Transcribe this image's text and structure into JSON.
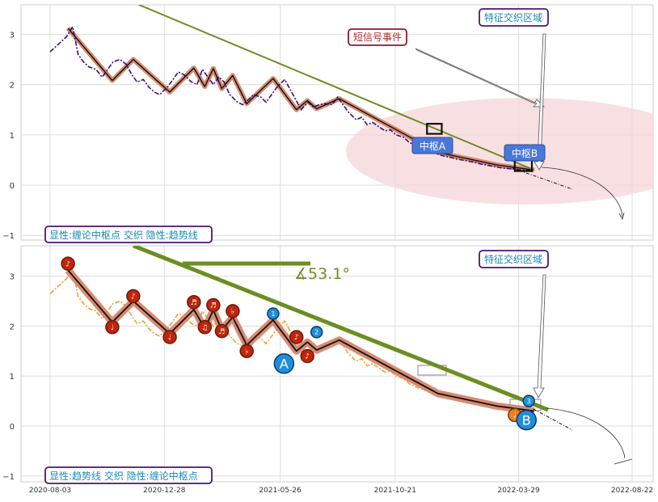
{
  "chart_data": [
    {
      "type": "line",
      "panel": "top",
      "ylim": [
        -1.1,
        3.6
      ],
      "y_ticks": [
        "3",
        "2",
        "1",
        "0",
        "−1"
      ],
      "grid": true,
      "price": {
        "x": [
          "2020-08-03",
          "2020-08-10",
          "2020-08-17",
          "2020-08-24",
          "2020-09-01",
          "2020-09-08",
          "2020-09-15",
          "2020-09-22",
          "2020-10-01",
          "2020-10-09",
          "2020-10-16",
          "2020-10-23",
          "2020-11-01",
          "2020-11-09",
          "2020-11-16",
          "2020-11-23",
          "2020-12-01",
          "2020-12-08",
          "2020-12-15",
          "2020-12-22",
          "2021-01-01",
          "2021-01-08",
          "2021-01-15",
          "2021-01-22",
          "2021-02-01",
          "2021-02-08",
          "2021-02-15",
          "2021-02-22",
          "2021-03-01",
          "2021-03-08",
          "2021-03-15",
          "2021-03-22",
          "2021-04-01",
          "2021-04-08",
          "2021-04-15",
          "2021-04-22",
          "2021-05-01",
          "2021-05-08",
          "2021-05-15",
          "2021-05-22",
          "2021-06-01",
          "2021-06-08",
          "2021-06-15",
          "2021-06-22",
          "2021-07-01",
          "2021-07-08",
          "2021-07-15",
          "2021-07-22",
          "2021-08-01",
          "2021-08-08",
          "2021-08-15",
          "2021-08-22",
          "2021-09-01",
          "2021-09-08",
          "2021-09-15",
          "2021-09-22",
          "2021-10-01",
          "2021-10-08",
          "2021-10-15",
          "2021-10-22",
          "2021-11-01",
          "2021-11-08",
          "2021-11-15",
          "2021-11-22",
          "2021-12-01",
          "2021-12-08",
          "2021-12-15",
          "2021-12-22",
          "2022-01-01",
          "2022-01-08",
          "2022-01-15",
          "2022-01-22",
          "2022-02-01",
          "2022-02-08",
          "2022-02-15",
          "2022-02-22",
          "2022-03-01",
          "2022-03-08",
          "2022-03-15",
          "2022-03-22",
          "2022-04-01",
          "2022-04-08",
          "2022-04-15"
        ],
        "y": [
          2.65,
          2.75,
          2.85,
          2.95,
          3.15,
          2.6,
          2.45,
          2.35,
          2.3,
          2.15,
          2.3,
          2.45,
          2.5,
          2.4,
          2.2,
          2.05,
          2.1,
          1.95,
          1.85,
          1.8,
          1.95,
          2.1,
          2.25,
          2.2,
          2.05,
          2.0,
          2.3,
          2.15,
          2.0,
          2.15,
          2.05,
          1.8,
          1.65,
          1.6,
          1.7,
          1.8,
          1.75,
          1.65,
          1.8,
          1.95,
          2.1,
          1.9,
          1.7,
          1.5,
          1.65,
          1.55,
          1.6,
          1.62,
          1.6,
          1.75,
          1.6,
          1.45,
          1.3,
          1.35,
          1.2,
          1.25,
          1.15,
          1.08,
          1.1,
          1.0,
          0.95,
          0.85,
          0.8,
          0.75,
          0.7,
          0.65,
          0.62,
          0.58,
          0.55,
          0.52,
          0.5,
          0.48,
          0.45,
          0.42,
          0.4,
          0.38,
          0.36,
          0.34,
          0.33,
          0.32,
          0.3,
          0.3,
          0.28
        ]
      },
      "zigzag": {
        "x": [
          "2020-08-26",
          "2020-10-22",
          "2020-11-18",
          "2021-01-04",
          "2021-02-04",
          "2021-02-18",
          "2021-03-01",
          "2021-03-12",
          "2021-03-26",
          "2021-04-13",
          "2021-05-17",
          "2021-06-16",
          "2021-06-30",
          "2021-07-12",
          "2021-08-10",
          "2021-12-15",
          "2022-03-01",
          "2022-04-08",
          "2022-04-18"
        ],
        "y": [
          3.12,
          2.08,
          2.5,
          1.85,
          2.33,
          1.96,
          2.32,
          1.92,
          2.18,
          1.62,
          2.12,
          1.5,
          1.68,
          1.52,
          1.72,
          0.65,
          0.4,
          0.32,
          0.3
        ]
      },
      "trendline": {
        "x": [
          "2020-12-01",
          "2022-04-18"
        ],
        "y": [
          3.6,
          0.3
        ]
      },
      "zhongshu": [
        {
          "label": "中枢A",
          "x0": "2021-12-01",
          "x1": "2021-12-20",
          "y0": 1.02,
          "y1": 1.22
        },
        {
          "label": "中枢B",
          "x0": "2022-03-24",
          "x1": "2022-04-15",
          "y0": 0.28,
          "y1": 0.5
        }
      ],
      "annotations": [
        "短信号事件",
        "特征交织区域"
      ],
      "legend": "显性:缠论中枢点 交织 隐性:趋势线"
    },
    {
      "type": "line",
      "panel": "bottom",
      "ylim": [
        -1.1,
        3.6
      ],
      "y_ticks": [
        "3",
        "2",
        "1",
        "0",
        "−1"
      ],
      "grid": true,
      "x_ticks": [
        "2020-08-03",
        "2020-12-28",
        "2021-05-26",
        "2021-10-21",
        "2022-03-29",
        "2022-08-22"
      ],
      "angle_label": "∡53.1°",
      "markers": [
        {
          "label": "♪",
          "x": "2020-08-26",
          "y": 3.25,
          "type": "red"
        },
        {
          "label": "♩",
          "x": "2020-10-22",
          "y": 1.98,
          "type": "red"
        },
        {
          "label": "♪",
          "x": "2020-11-18",
          "y": 2.6,
          "type": "red"
        },
        {
          "label": "♩",
          "x": "2021-01-04",
          "y": 1.78,
          "type": "red"
        },
        {
          "label": "♬",
          "x": "2021-02-04",
          "y": 2.48,
          "type": "red"
        },
        {
          "label": "♫",
          "x": "2021-02-18",
          "y": 1.98,
          "type": "red"
        },
        {
          "label": "♬",
          "x": "2021-03-01",
          "y": 2.42,
          "type": "red"
        },
        {
          "label": "♬",
          "x": "2021-03-12",
          "y": 1.9,
          "type": "red"
        },
        {
          "label": "♭",
          "x": "2021-03-26",
          "y": 2.3,
          "type": "red"
        },
        {
          "label": "♭",
          "x": "2021-04-13",
          "y": 1.5,
          "type": "red"
        },
        {
          "label": "1",
          "x": "2021-05-17",
          "y": 2.25,
          "type": "blue"
        },
        {
          "label": "A",
          "x": "2021-05-31",
          "y": 1.25,
          "type": "blue-big"
        },
        {
          "label": "♪",
          "x": "2021-06-16",
          "y": 1.78,
          "type": "red"
        },
        {
          "label": "♪",
          "x": "2021-06-30",
          "y": 1.4,
          "type": "red"
        },
        {
          "label": "2",
          "x": "2021-07-12",
          "y": 1.88,
          "type": "blue"
        },
        {
          "label": "♩",
          "x": "2022-03-24",
          "y": 0.22,
          "type": "orange"
        },
        {
          "label": "B",
          "x": "2022-04-08",
          "y": 0.12,
          "type": "blue-big"
        },
        {
          "label": "3",
          "x": "2022-04-11",
          "y": 0.5,
          "type": "blue"
        }
      ],
      "annotations": [
        "特征交织区域"
      ],
      "legend": "显性:趋势线 交织 隐性:缠论中枢点"
    }
  ],
  "colors": {
    "price_top": "#3b0a7a",
    "price_bottom": "#f0a030",
    "zigzag": "#111111",
    "zigzag_band": "#d88a70",
    "trend": "#6b8e23",
    "ellipse": "#f6d5d8",
    "label_blue": "#4a78d8",
    "box_border": "#4b1478",
    "box_text": "#1a8ab4",
    "marker_red": "#c0260c",
    "marker_blue": "#1f8fd8",
    "marker_orange": "#f08020"
  }
}
